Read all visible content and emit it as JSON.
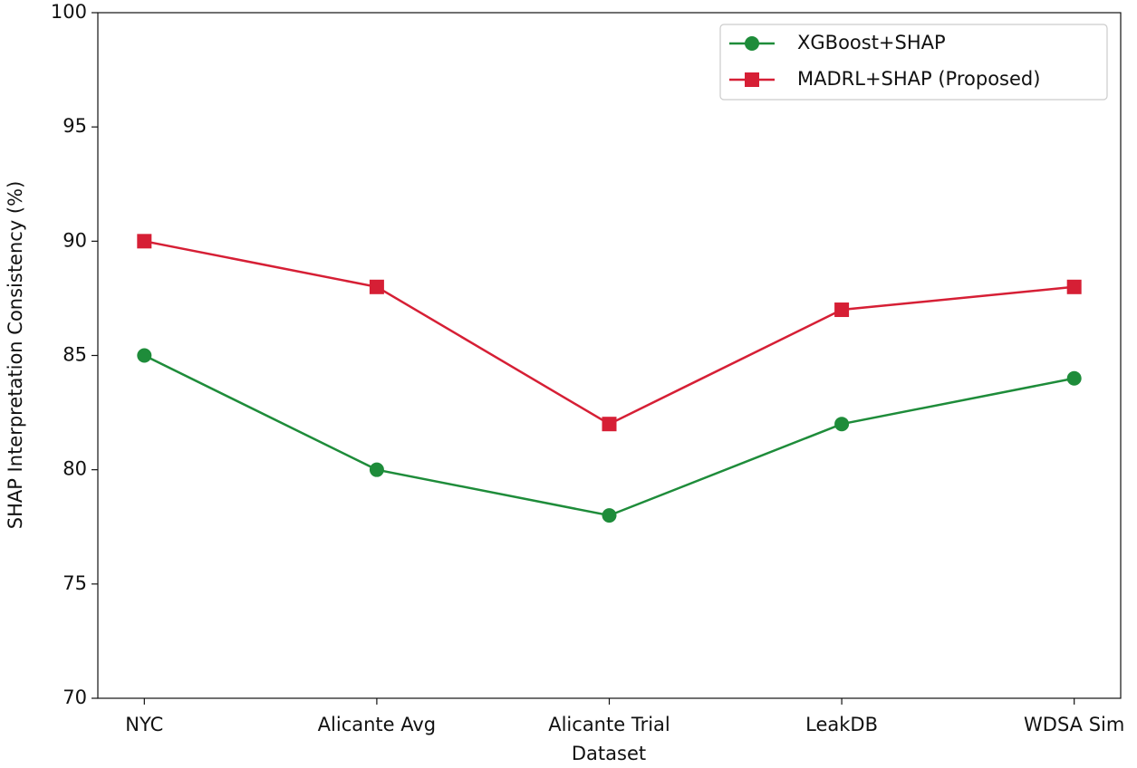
{
  "chart_data": {
    "type": "line",
    "xlabel": "Dataset",
    "ylabel": "SHAP Interpretation Consistency (%)",
    "categories": [
      "NYC",
      "Alicante Avg",
      "Alicante Trial",
      "LeakDB",
      "WDSA Sim"
    ],
    "series": [
      {
        "name": "XGBoost+SHAP",
        "color": "#1e8c3a",
        "marker": "circle",
        "values": [
          85,
          80,
          78,
          82,
          84
        ]
      },
      {
        "name": "MADRL+SHAP (Proposed)",
        "color": "#d61f35",
        "marker": "square",
        "values": [
          90,
          88,
          82,
          87,
          88
        ]
      }
    ],
    "ylim": [
      70,
      100
    ],
    "yticks": [
      70,
      75,
      80,
      85,
      90,
      95,
      100
    ],
    "grid": false,
    "legend": "upper right"
  }
}
